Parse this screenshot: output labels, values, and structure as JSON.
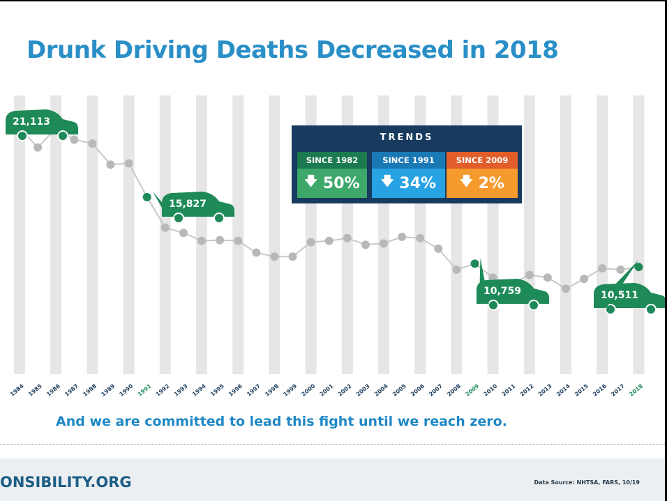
{
  "page": {
    "title": "Drunk Driving Deaths Decreased in 2018",
    "tagline": "And we are committed to lead this fight until we reach zero.",
    "footer": {
      "site": "ONSIBILITY.ORG",
      "source": "Data Source: NHTSA, FARS, 10/19"
    }
  },
  "trends": {
    "title": "TRENDS",
    "items": [
      {
        "label": "SINCE 1982",
        "value": "50%",
        "arrow": "down-arrow-icon",
        "header_color": "#1b7a4f",
        "value_color": "#3da86a"
      },
      {
        "label": "SINCE 1991",
        "value": "34%",
        "arrow": "down-arrow-icon",
        "header_color": "#1a78b5",
        "value_color": "#27a3e4"
      },
      {
        "label": "SINCE 2009",
        "value": "2%",
        "arrow": "down-arrow-icon",
        "header_color": "#e15d2a",
        "value_color": "#f59a2c"
      }
    ]
  },
  "colors": {
    "title": "#2a8fc7",
    "highlight": "#1d8a58",
    "point": "#b8b8b8",
    "line": "#c8c8c8",
    "stripe": "#e6e6e6",
    "year_label": "#1d3d5c"
  },
  "chart_data": {
    "type": "line",
    "categories": [
      "1984",
      "1985",
      "1986",
      "1987",
      "1988",
      "1989",
      "1990",
      "1991",
      "1992",
      "1993",
      "1994",
      "1995",
      "1996",
      "1997",
      "1998",
      "1999",
      "2000",
      "2001",
      "2002",
      "2003",
      "2004",
      "2005",
      "2006",
      "2007",
      "2008",
      "2009",
      "2010",
      "2011",
      "2012",
      "2013",
      "2014",
      "2015",
      "2016",
      "2017",
      "2018"
    ],
    "series": [
      {
        "values": [
          21113,
          19600,
          21070,
          20200,
          19900,
          18300,
          18400,
          15827,
          13500,
          13100,
          12500,
          12550,
          12500,
          11600,
          11300,
          11300,
          12400,
          12500,
          12700,
          12200,
          12300,
          12800,
          12700,
          11900,
          10300,
          10759,
          9700,
          9200,
          9900,
          9700,
          8850,
          9600,
          10400,
          10300,
          10511
        ]
      }
    ],
    "highlights": [
      {
        "category": "1984",
        "label": "21,113"
      },
      {
        "category": "1991",
        "label": "15,827"
      },
      {
        "category": "2009",
        "label": "10,759"
      },
      {
        "category": "2018",
        "label": "10,511"
      }
    ],
    "highlight_years": [
      "1991",
      "2009",
      "2018"
    ],
    "ylim": [
      5000,
      22500
    ],
    "grid": false,
    "xlabel": "",
    "ylabel": ""
  }
}
